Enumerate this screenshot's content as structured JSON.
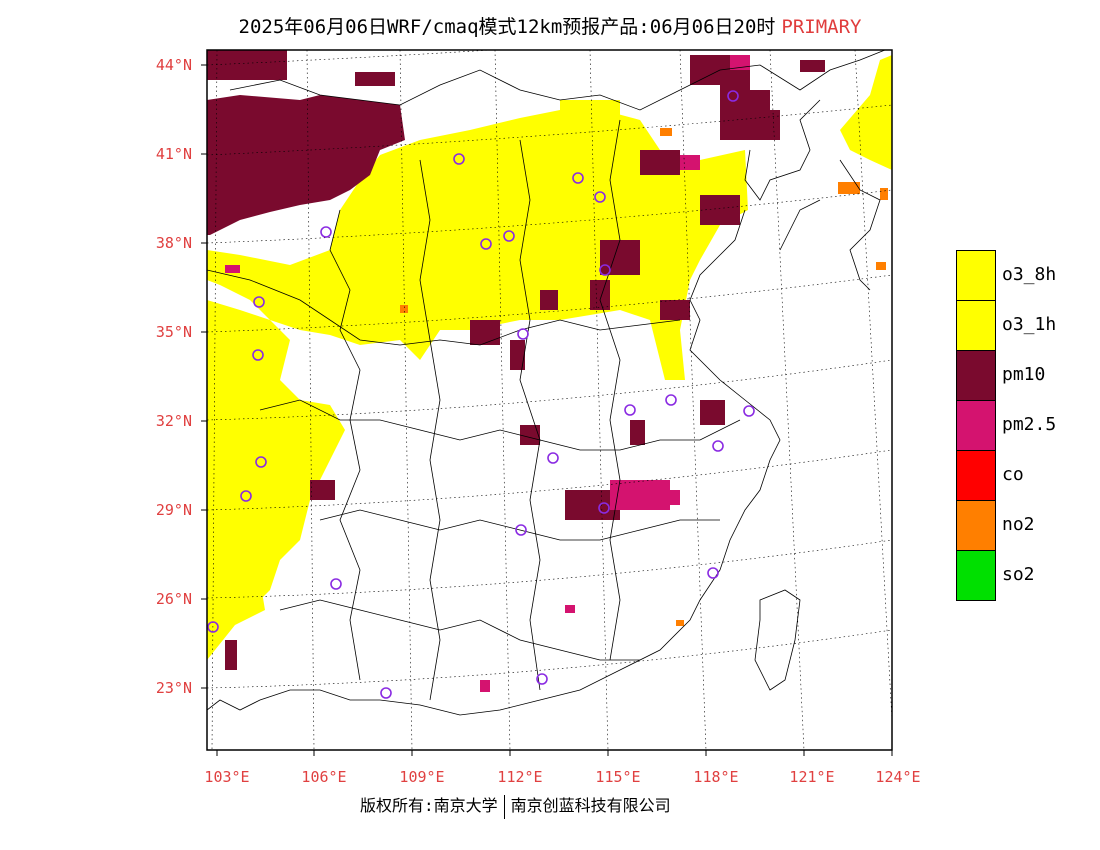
{
  "title": {
    "text": "2025年06月06日WRF/cmaq模式12km预报产品:06月06日20时",
    "tag": "PRIMARY"
  },
  "axes": {
    "lat_labels": [
      "44°N",
      "41°N",
      "38°N",
      "35°N",
      "32°N",
      "29°N",
      "26°N",
      "23°N"
    ],
    "lon_labels": [
      "103°E",
      "106°E",
      "109°E",
      "112°E",
      "115°E",
      "118°E",
      "121°E",
      "124°E"
    ]
  },
  "legend": [
    {
      "label": "o3_8h",
      "color": "#ffff00"
    },
    {
      "label": "o3_1h",
      "color": "#ffff00"
    },
    {
      "label": "pm10",
      "color": "#7a0a2e"
    },
    {
      "label": "pm2.5",
      "color": "#d4136f"
    },
    {
      "label": "co",
      "color": "#ff0000"
    },
    {
      "label": "no2",
      "color": "#ff7f00"
    },
    {
      "label": "so2",
      "color": "#00e000"
    }
  ],
  "footer": {
    "left": "版权所有:南京大学",
    "right": "南京创蓝科技有限公司"
  },
  "colors": {
    "axis_label": "#e04040",
    "station_marker": "#8a2be2"
  }
}
